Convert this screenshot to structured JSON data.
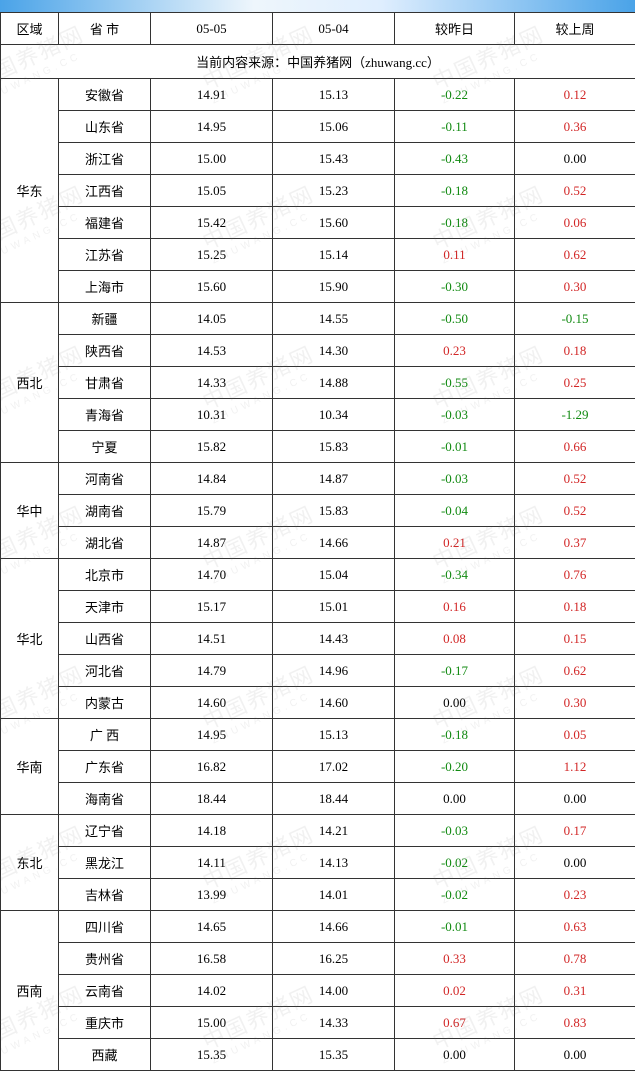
{
  "table": {
    "headers": {
      "region": "区域",
      "province": "省 市",
      "d1": "05-05",
      "d2": "05-04",
      "vs_yday": "较昨日",
      "vs_lweek": "较上周"
    },
    "source": "当前内容来源：中国养猪网（zhuwang.cc）",
    "col_widths": {
      "region": 58,
      "province": 92,
      "d1": 122,
      "d2": 122,
      "vs_yday": 120,
      "vs_lweek": 121
    },
    "colors": {
      "neg": "#118a11",
      "pos": "#d22626",
      "zero": "#000000",
      "border": "#333333",
      "bg": "#ffffff"
    },
    "regions": [
      {
        "name": "华东",
        "rows": [
          {
            "p": "安徽省",
            "d1": "14.91",
            "d2": "15.13",
            "yd": "-0.22",
            "lw": "0.12"
          },
          {
            "p": "山东省",
            "d1": "14.95",
            "d2": "15.06",
            "yd": "-0.11",
            "lw": "0.36"
          },
          {
            "p": "浙江省",
            "d1": "15.00",
            "d2": "15.43",
            "yd": "-0.43",
            "lw": "0.00"
          },
          {
            "p": "江西省",
            "d1": "15.05",
            "d2": "15.23",
            "yd": "-0.18",
            "lw": "0.52"
          },
          {
            "p": "福建省",
            "d1": "15.42",
            "d2": "15.60",
            "yd": "-0.18",
            "lw": "0.06"
          },
          {
            "p": "江苏省",
            "d1": "15.25",
            "d2": "15.14",
            "yd": "0.11",
            "lw": "0.62"
          },
          {
            "p": "上海市",
            "d1": "15.60",
            "d2": "15.90",
            "yd": "-0.30",
            "lw": "0.30"
          }
        ]
      },
      {
        "name": "西北",
        "rows": [
          {
            "p": "新疆",
            "d1": "14.05",
            "d2": "14.55",
            "yd": "-0.50",
            "lw": "-0.15"
          },
          {
            "p": "陕西省",
            "d1": "14.53",
            "d2": "14.30",
            "yd": "0.23",
            "lw": "0.18"
          },
          {
            "p": "甘肃省",
            "d1": "14.33",
            "d2": "14.88",
            "yd": "-0.55",
            "lw": "0.25"
          },
          {
            "p": "青海省",
            "d1": "10.31",
            "d2": "10.34",
            "yd": "-0.03",
            "lw": "-1.29"
          },
          {
            "p": "宁夏",
            "d1": "15.82",
            "d2": "15.83",
            "yd": "-0.01",
            "lw": "0.66"
          }
        ]
      },
      {
        "name": "华中",
        "rows": [
          {
            "p": "河南省",
            "d1": "14.84",
            "d2": "14.87",
            "yd": "-0.03",
            "lw": "0.52"
          },
          {
            "p": "湖南省",
            "d1": "15.79",
            "d2": "15.83",
            "yd": "-0.04",
            "lw": "0.52"
          },
          {
            "p": "湖北省",
            "d1": "14.87",
            "d2": "14.66",
            "yd": "0.21",
            "lw": "0.37"
          }
        ]
      },
      {
        "name": "华北",
        "rows": [
          {
            "p": "北京市",
            "d1": "14.70",
            "d2": "15.04",
            "yd": "-0.34",
            "lw": "0.76"
          },
          {
            "p": "天津市",
            "d1": "15.17",
            "d2": "15.01",
            "yd": "0.16",
            "lw": "0.18"
          },
          {
            "p": "山西省",
            "d1": "14.51",
            "d2": "14.43",
            "yd": "0.08",
            "lw": "0.15"
          },
          {
            "p": "河北省",
            "d1": "14.79",
            "d2": "14.96",
            "yd": "-0.17",
            "lw": "0.62"
          },
          {
            "p": "内蒙古",
            "d1": "14.60",
            "d2": "14.60",
            "yd": "0.00",
            "lw": "0.30"
          }
        ]
      },
      {
        "name": "华南",
        "rows": [
          {
            "p": "广 西",
            "d1": "14.95",
            "d2": "15.13",
            "yd": "-0.18",
            "lw": "0.05"
          },
          {
            "p": "广东省",
            "d1": "16.82",
            "d2": "17.02",
            "yd": "-0.20",
            "lw": "1.12"
          },
          {
            "p": "海南省",
            "d1": "18.44",
            "d2": "18.44",
            "yd": "0.00",
            "lw": "0.00"
          }
        ]
      },
      {
        "name": "东北",
        "rows": [
          {
            "p": "辽宁省",
            "d1": "14.18",
            "d2": "14.21",
            "yd": "-0.03",
            "lw": "0.17"
          },
          {
            "p": "黑龙江",
            "d1": "14.11",
            "d2": "14.13",
            "yd": "-0.02",
            "lw": "0.00"
          },
          {
            "p": "吉林省",
            "d1": "13.99",
            "d2": "14.01",
            "yd": "-0.02",
            "lw": "0.23"
          }
        ]
      },
      {
        "name": "西南",
        "rows": [
          {
            "p": "四川省",
            "d1": "14.65",
            "d2": "14.66",
            "yd": "-0.01",
            "lw": "0.63"
          },
          {
            "p": "贵州省",
            "d1": "16.58",
            "d2": "16.25",
            "yd": "0.33",
            "lw": "0.78"
          },
          {
            "p": "云南省",
            "d1": "14.02",
            "d2": "14.00",
            "yd": "0.02",
            "lw": "0.31"
          },
          {
            "p": "重庆市",
            "d1": "15.00",
            "d2": "14.33",
            "yd": "0.67",
            "lw": "0.83"
          },
          {
            "p": "西藏",
            "d1": "15.35",
            "d2": "15.35",
            "yd": "0.00",
            "lw": "0.00"
          }
        ]
      }
    ]
  },
  "watermark": {
    "text_big": "中国养猪网",
    "text_small": "ZHUWANG.CC"
  }
}
